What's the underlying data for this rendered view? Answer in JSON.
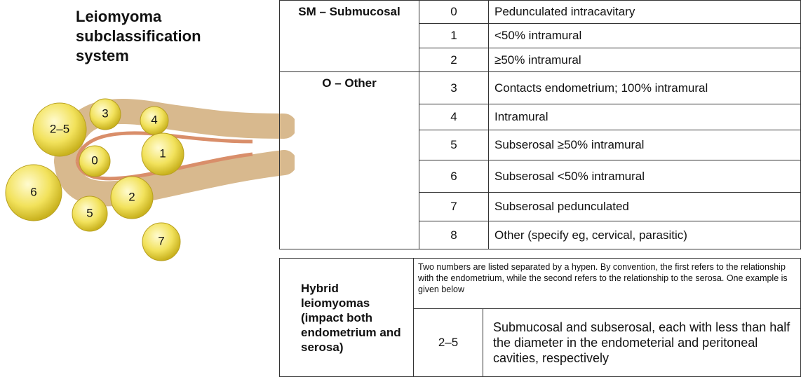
{
  "title": "Leiomyoma subclassification system",
  "figure": {
    "fibroids": [
      {
        "label": "2–5"
      },
      {
        "label": "3"
      },
      {
        "label": "4"
      },
      {
        "label": "0"
      },
      {
        "label": "1"
      },
      {
        "label": "6"
      },
      {
        "label": "2"
      },
      {
        "label": "5"
      },
      {
        "label": "7"
      }
    ]
  },
  "table": {
    "groups": [
      {
        "label": "SM – Submucosal",
        "rows": [
          [
            "0",
            "Pedunculated intracavitary"
          ],
          [
            "1",
            "<50% intramural"
          ],
          [
            "2",
            "≥50% intramural"
          ]
        ]
      },
      {
        "label": "O – Other",
        "rows": [
          [
            "3",
            "Contacts endometrium; 100% intramural"
          ],
          [
            "4",
            "Intramural"
          ],
          [
            "5",
            "Subserosal ≥50% intramural"
          ],
          [
            "6",
            "Subserosal <50% intramural"
          ],
          [
            "7",
            "Subserosal pedunculated"
          ],
          [
            "8",
            "Other (specify eg, cervical, parasitic)"
          ]
        ]
      }
    ]
  },
  "hybrid": {
    "label": "Hybrid leiomyomas (impact both endometrium and serosa)",
    "intro": "Two numbers are listed separated by a hypen. By convention, the first refers to the relationship with the endometrium, while the second refers to the relationship to the serosa. One example is given below",
    "rows": [
      [
        "2–5",
        "Submucosal and subserosal, each with less than half the diameter in the endometerial and peritoneal cavities, respectively"
      ]
    ]
  }
}
